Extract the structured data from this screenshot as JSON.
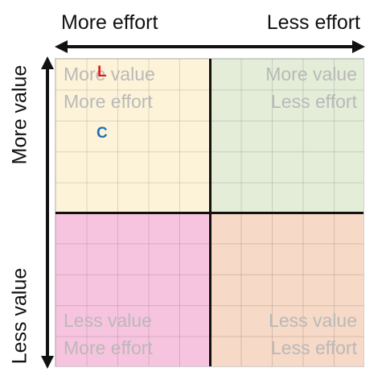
{
  "axes": {
    "top_left": "More effort",
    "top_right": "Less effort",
    "left_top": "More value",
    "left_bottom": "Less value"
  },
  "quadrants": {
    "top_left": {
      "line1": "More value",
      "line2": "More effort",
      "color": "#fdf3d9"
    },
    "top_right": {
      "line1": "More value",
      "line2": "Less effort",
      "color": "#e3edd8"
    },
    "bottom_left": {
      "line1": "Less value",
      "line2": "More effort",
      "color": "#f7c4df"
    },
    "bottom_right": {
      "line1": "Less value",
      "line2": "Less effort",
      "color": "#f6d9c6"
    }
  },
  "markers": [
    {
      "label": "L",
      "color": "#e31b1b"
    },
    {
      "label": "C",
      "color": "#1f6fb8"
    }
  ]
}
